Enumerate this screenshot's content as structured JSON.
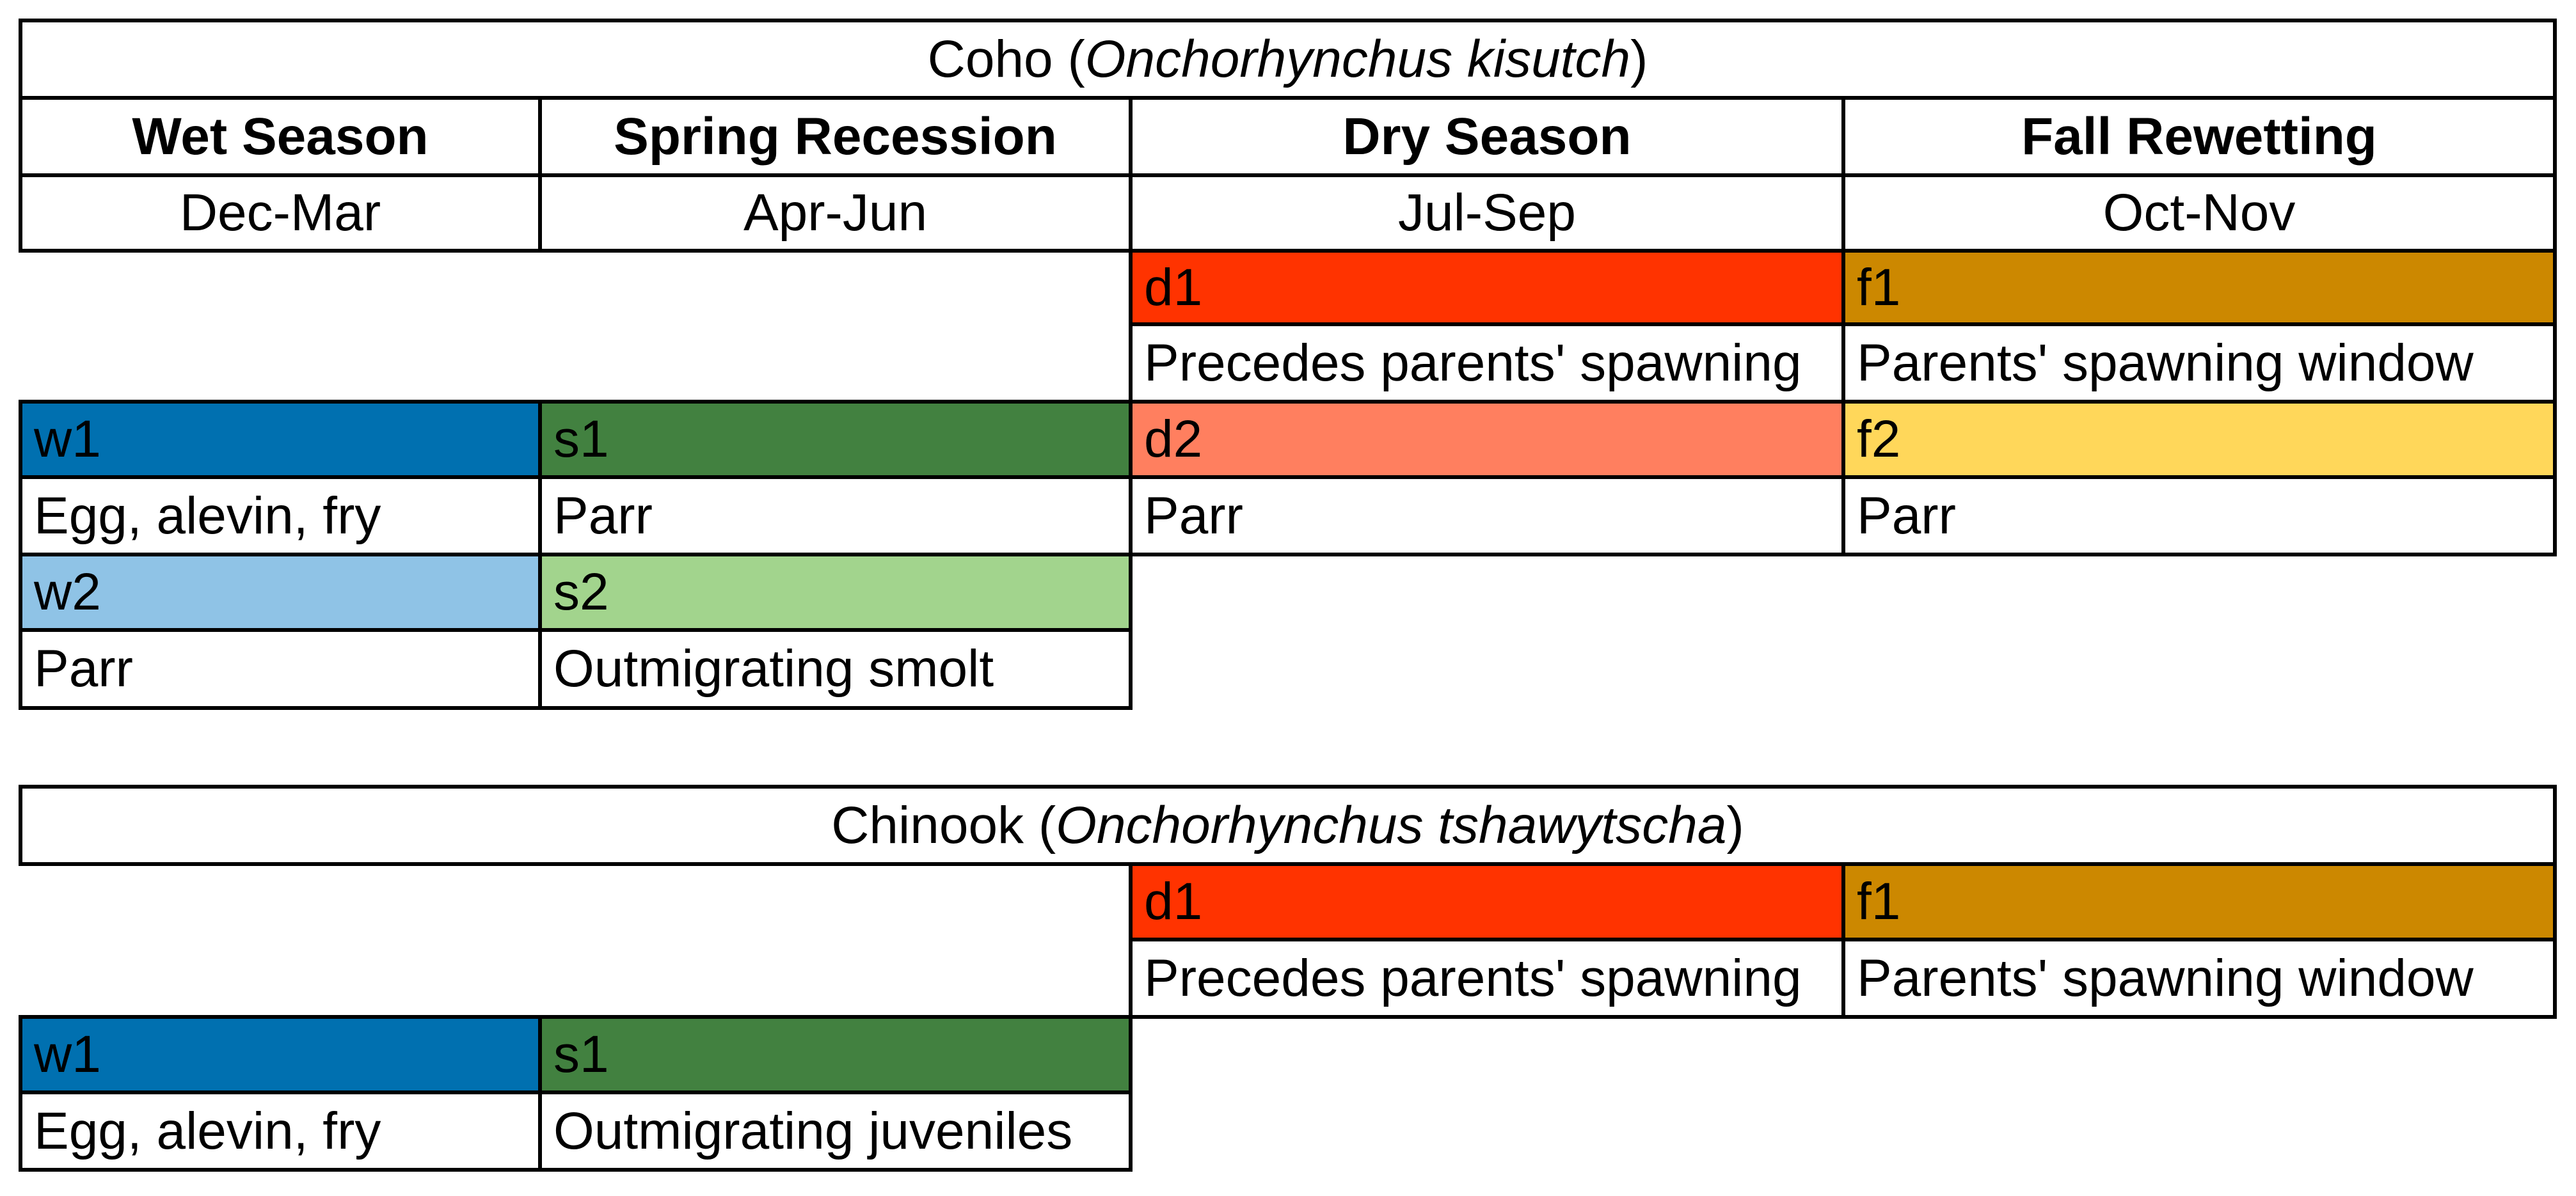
{
  "colors": {
    "w1": "#0070b0",
    "w2": "#8fc3e6",
    "s1": "#428140",
    "s2": "#a2d48d",
    "d1": "#ff3300",
    "d2": "#ff7f5f",
    "f1": "#cc8800",
    "f2": "#ffd75a"
  },
  "coho": {
    "title_common": "Coho (",
    "title_latin": "Onchorhynchus kisutch",
    "title_close": " )",
    "headers": [
      "Wet Season",
      "Spring Recession",
      "Dry Season",
      "Fall Rewetting"
    ],
    "months": [
      "Dec-Mar",
      "Apr-Jun",
      "Jul-Sep",
      "Oct-Nov"
    ],
    "cells": {
      "d1": {
        "code": "d1",
        "desc": "Precedes parents' spawning"
      },
      "f1": {
        "code": "f1",
        "desc": "Parents' spawning window"
      },
      "w1": {
        "code": "w1",
        "desc": "Egg, alevin, fry"
      },
      "s1": {
        "code": "s1",
        "desc": "Parr"
      },
      "d2": {
        "code": "d2",
        "desc": "Parr"
      },
      "f2": {
        "code": "f2",
        "desc": "Parr"
      },
      "w2": {
        "code": "w2",
        "desc": "Parr"
      },
      "s2": {
        "code": "s2",
        "desc": "Outmigrating smolt"
      }
    }
  },
  "chinook": {
    "title_common": "Chinook (",
    "title_latin": "Onchorhynchus tshawytscha",
    "title_close": " )",
    "cells": {
      "d1": {
        "code": "d1",
        "desc": "Precedes parents' spawning"
      },
      "f1": {
        "code": "f1",
        "desc": "Parents' spawning window"
      },
      "w1": {
        "code": "w1",
        "desc": "Egg, alevin, fry"
      },
      "s1": {
        "code": "s1",
        "desc": "Outmigrating juveniles"
      }
    }
  }
}
